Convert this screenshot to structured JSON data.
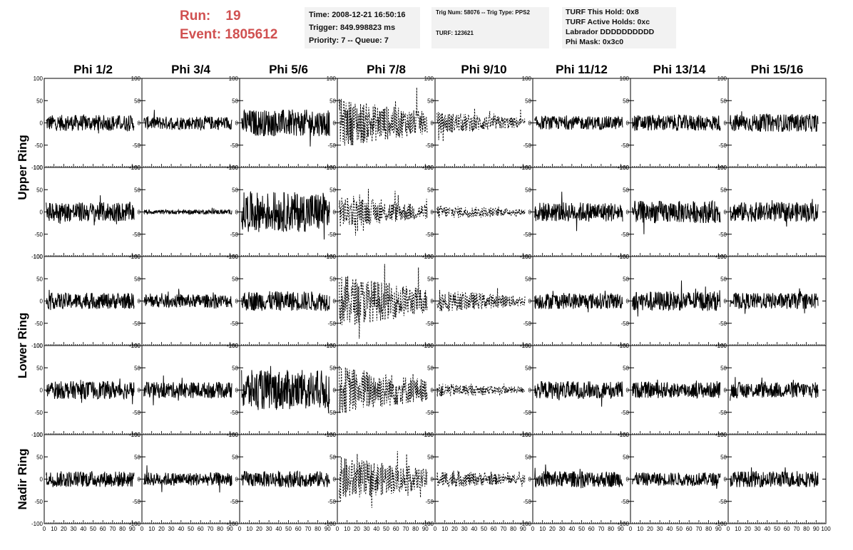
{
  "header": {
    "run_label": "Run:",
    "run_value": "19",
    "event_label": "Event:",
    "event_value": "1805612"
  },
  "info_time": {
    "time": "Time: 2008-12-21 16:50:16",
    "trigger": "Trigger: 849.998823 ms",
    "priority": "Priority: 7 -- Queue: 7"
  },
  "info_trig": {
    "trig": "Trig Num: 58076 -- Trig Type: PPS2",
    "turf": "TURF: 123621"
  },
  "info_turf": {
    "this_hold": "TURF This Hold: 0x8",
    "active_holds": "TURF Active Holds: 0xc",
    "labrador": "Labrador DDDDDDDDDD",
    "phi_mask": "Phi Mask: 0x3c0"
  },
  "columns": [
    "Phi 1/2",
    "Phi 3/4",
    "Phi 5/6",
    "Phi 7/8",
    "Phi 9/10",
    "Phi 11/12",
    "Phi 13/14",
    "Phi 15/16"
  ],
  "rings": [
    "Upper Ring",
    "Lower Ring",
    "Nadir Ring"
  ],
  "axes": {
    "y_ticks": [
      "100",
      "50",
      "0",
      "-50",
      "-100"
    ],
    "x_ticks": [
      "0",
      "10",
      "20",
      "30",
      "40",
      "50",
      "60",
      "70",
      "80",
      "90"
    ],
    "x_last": "100"
  },
  "chart_data": {
    "type": "line",
    "xlim": [
      0,
      100
    ],
    "ylim": [
      -100,
      100
    ],
    "grid": false,
    "rows": 5,
    "panels_per_row": 8,
    "amplitude": [
      [
        18,
        15,
        30,
        55,
        25,
        15,
        18,
        20
      ],
      [
        22,
        5,
        45,
        35,
        15,
        22,
        25,
        22
      ],
      [
        18,
        15,
        22,
        60,
        25,
        18,
        22,
        18
      ],
      [
        20,
        18,
        45,
        55,
        15,
        20,
        18,
        18
      ],
      [
        18,
        15,
        18,
        50,
        20,
        18,
        15,
        18
      ]
    ],
    "dashed": [
      [
        false,
        false,
        false,
        true,
        true,
        false,
        false,
        false
      ],
      [
        false,
        false,
        false,
        true,
        true,
        false,
        false,
        false
      ],
      [
        false,
        false,
        false,
        true,
        true,
        false,
        false,
        false
      ],
      [
        false,
        false,
        false,
        true,
        true,
        false,
        false,
        false
      ],
      [
        false,
        false,
        false,
        true,
        true,
        false,
        false,
        false
      ]
    ]
  }
}
